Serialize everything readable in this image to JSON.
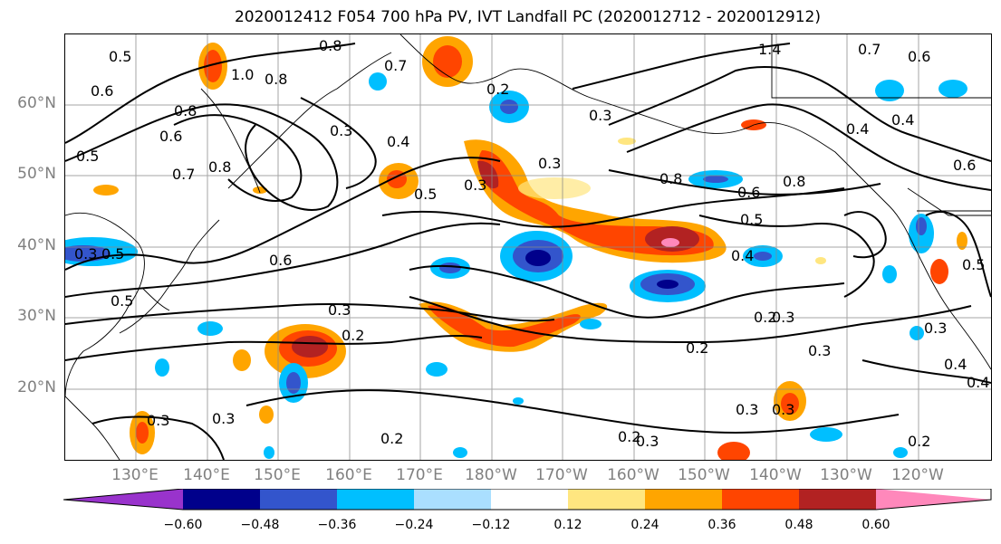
{
  "title": "2020012412 F054 700 hPa PV, IVT Landfall PC (2020012712 - 2020012912)",
  "lat_labels": [
    "60°N",
    "50°N",
    "40°N",
    "30°N",
    "20°N"
  ],
  "lon_labels": [
    "130°E",
    "140°E",
    "150°E",
    "160°E",
    "170°E",
    "180°W",
    "170°W",
    "160°W",
    "150°W",
    "140°W",
    "130°W",
    "120°W"
  ],
  "colorbar": {
    "colors": [
      "#9933cc",
      "#00008b",
      "#3355cc",
      "#00bfff",
      "#aadfff",
      "#ffffff",
      "#ffe680",
      "#ffa500",
      "#ff4500",
      "#b22222",
      "#ff88bb"
    ],
    "tick_labels": [
      "−0.60",
      "−0.48",
      "−0.36",
      "−0.24",
      "−0.12",
      "0.12",
      "0.24",
      "0.36",
      "0.48",
      "0.60"
    ]
  },
  "contour_labels": [
    "0.5",
    "0.6",
    "0.8",
    "0.7",
    "1.0",
    "0.8",
    "1.4",
    "0.5",
    "0.6",
    "0.8",
    "0.7",
    "0.8",
    "0.2",
    "0.3",
    "0.3",
    "0.6",
    "0.7",
    "0.6",
    "0.4",
    "0.4",
    "0.3",
    "0.4",
    "0.5",
    "0.3",
    "0.5",
    "0.6",
    "0.8",
    "0.8",
    "0.5",
    "0.3",
    "0.5",
    "0.3",
    "0.6",
    "0.5",
    "0.4",
    "0.3",
    "0.2",
    "0.2",
    "0.3",
    "0.2",
    "0.3",
    "0.3",
    "0.3",
    "0.4",
    "0.2",
    "0.3",
    "0.3",
    "0.2",
    "0.2",
    "0.3",
    "0.4"
  ]
}
